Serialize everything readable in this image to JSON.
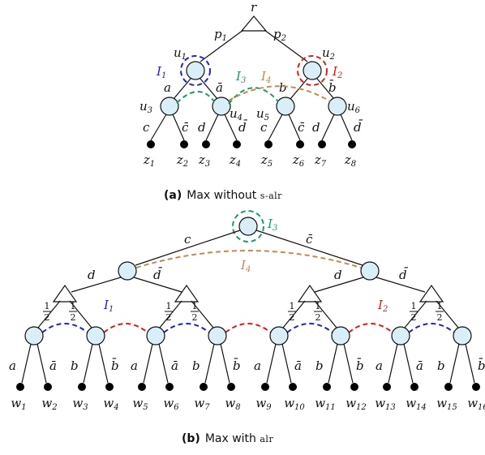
{
  "top": {
    "root_label": "r",
    "edge_labels": [
      "p1",
      "p2"
    ],
    "node_labels": [
      "u1",
      "u2",
      "u3",
      "u4",
      "u5",
      "u6"
    ],
    "action_labels": [
      "a",
      "ā",
      "b",
      "b̄",
      "c",
      "c̄",
      "d",
      "d̄",
      "c",
      "c̄",
      "d",
      "d̄"
    ],
    "info_sets": [
      "I1",
      "I2",
      "I3",
      "I4"
    ],
    "leaves": [
      "z1",
      "z2",
      "z3",
      "z4",
      "z5",
      "z6",
      "z7",
      "z8"
    ],
    "caption_prefix": "(a)",
    "caption_text": "Max without ",
    "caption_sc": "s-alr"
  },
  "bottom": {
    "root_edges": [
      "c",
      "c̄"
    ],
    "mid_edges": [
      "d",
      "d̄",
      "d",
      "d̄"
    ],
    "chance_prob": "1/2",
    "action_labels": [
      "a",
      "ā",
      "b",
      "b̄",
      "a",
      "ā",
      "b",
      "b̄",
      "a",
      "ā",
      "b",
      "b̄",
      "a",
      "ā",
      "b",
      "b̄"
    ],
    "info_sets": [
      "I3",
      "I4",
      "I1",
      "I2"
    ],
    "leaves": [
      "w1",
      "w2",
      "w3",
      "w4",
      "w5",
      "w6",
      "w7",
      "w8",
      "w9",
      "w10",
      "w11",
      "w12",
      "w13",
      "w14",
      "w15",
      "w16"
    ],
    "caption_prefix": "(b)",
    "caption_text": "Max with ",
    "caption_sc": "alr"
  },
  "colors": {
    "blue": "#1f1fd6",
    "red": "#e01b1b",
    "green": "#1a9a6a",
    "orange": "#c9874a",
    "node_fill": "#d9eef7"
  }
}
